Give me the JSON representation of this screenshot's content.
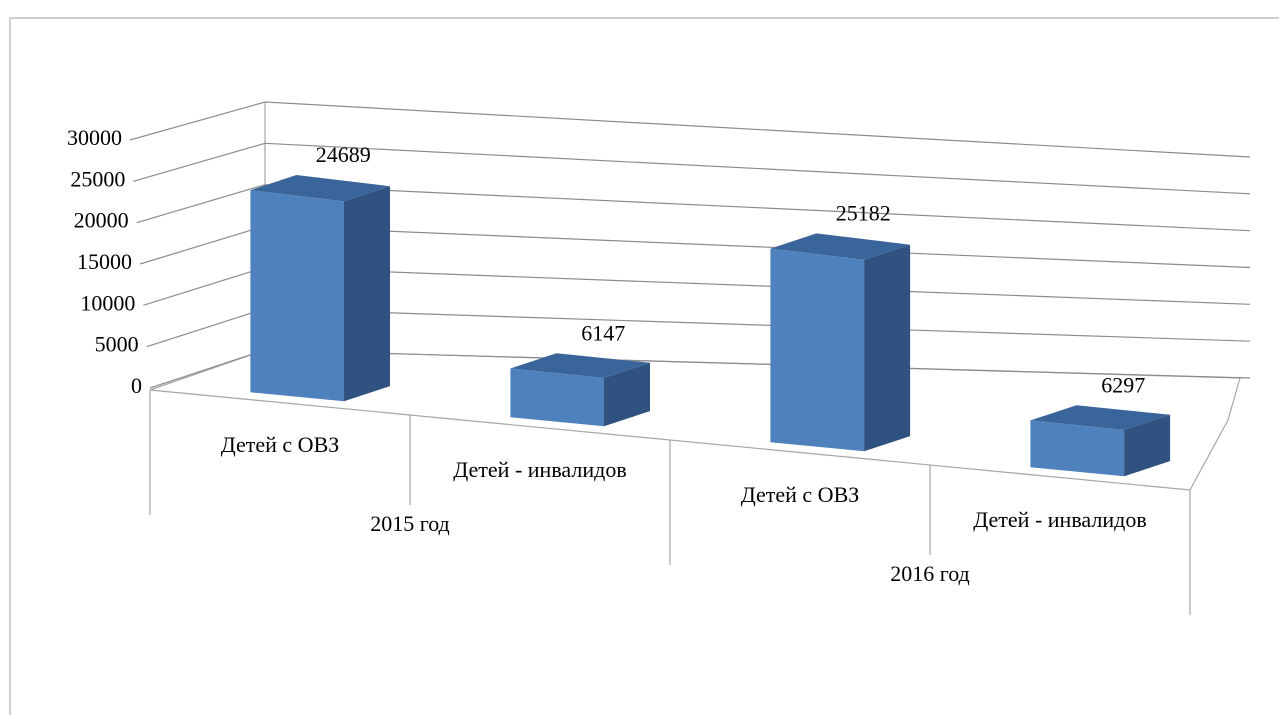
{
  "chart_data": {
    "type": "bar3d",
    "groups": [
      "2015 год",
      "2016 год"
    ],
    "categories": [
      "Детей с ОВЗ",
      "Детей - инвалидов",
      "Детей с ОВЗ",
      "Детей - инвалидов"
    ],
    "values": [
      24689,
      6147,
      25182,
      6297
    ],
    "color": "#4f81bd",
    "ylim": [
      0,
      30000
    ],
    "yticks": [
      0,
      5000,
      10000,
      15000,
      20000,
      25000,
      30000
    ],
    "grid": true
  }
}
